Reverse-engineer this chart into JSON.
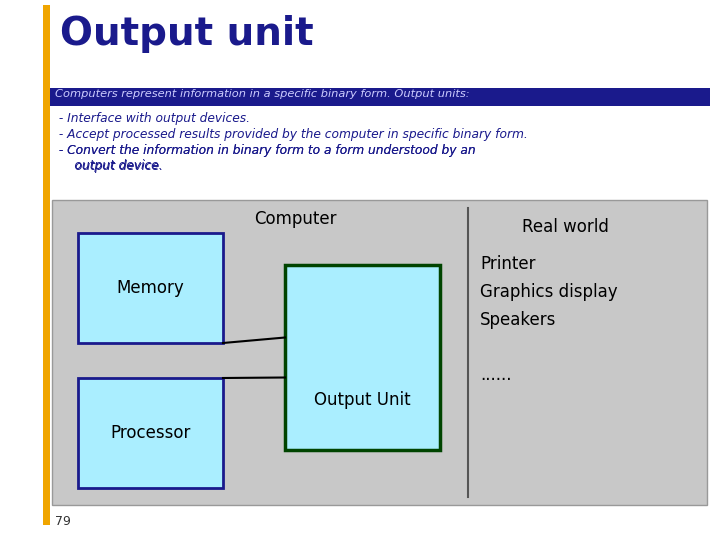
{
  "title": "Output unit",
  "title_color": "#1a1a8c",
  "title_fontsize": 28,
  "accent_bar_color": "#f0a500",
  "subtitle_text": "Computers represent information in a specific binary form. Output units:",
  "subtitle_color": "#ccccff",
  "subtitle_bg": "#1a1a8c",
  "body_lines": [
    " - Interface with output devices.",
    " - Accept processed results provided by the computer in specific binary form.",
    " - Convert the information in binary form to a form understood by an\n     output device."
  ],
  "body_color": "#1a1a8c",
  "diagram_bg": "#c8c8c8",
  "diagram_box_fill": "#aaeeff",
  "diagram_box_edge_memory": "#1a1a8c",
  "diagram_box_edge_output": "#004400",
  "diagram_box_edge_processor": "#1a1a8c",
  "computer_label": "Computer",
  "real_world_label": "Real world",
  "memory_label": "Memory",
  "output_unit_label": "Output Unit",
  "processor_label": "Processor",
  "real_world_items": "Printer\nGraphics display\nSpeakers\n\n......",
  "page_number": "79",
  "white_bg": "#ffffff",
  "divider_color": "#555555"
}
